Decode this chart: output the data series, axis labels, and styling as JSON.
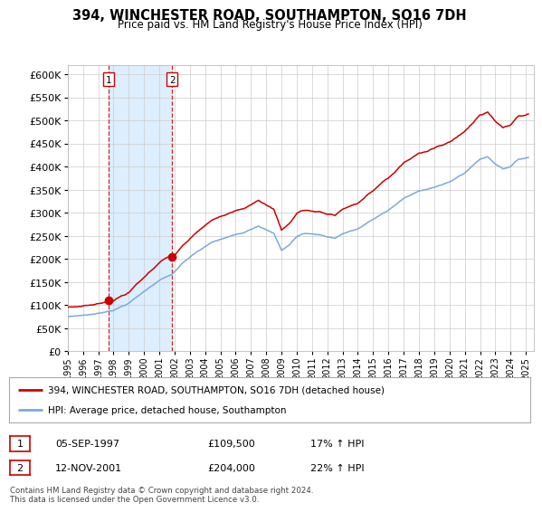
{
  "title": "394, WINCHESTER ROAD, SOUTHAMPTON, SO16 7DH",
  "subtitle": "Price paid vs. HM Land Registry's House Price Index (HPI)",
  "sale1_price": 109500,
  "sale2_price": 204000,
  "hpi_color": "#7aaadd",
  "price_color": "#cc0000",
  "vline_color": "#cc0000",
  "shade_color": "#ddeeff",
  "legend1": "394, WINCHESTER ROAD, SOUTHAMPTON, SO16 7DH (detached house)",
  "legend2": "HPI: Average price, detached house, Southampton",
  "table_row1_label": "1",
  "table_row1_date": "05-SEP-1997",
  "table_row1_price": "£109,500",
  "table_row1_hpi": "17% ↑ HPI",
  "table_row2_label": "2",
  "table_row2_date": "12-NOV-2001",
  "table_row2_price": "£204,000",
  "table_row2_hpi": "22% ↑ HPI",
  "footer": "Contains HM Land Registry data © Crown copyright and database right 2024.\nThis data is licensed under the Open Government Licence v3.0.",
  "ylim": [
    0,
    620000
  ],
  "yticks": [
    0,
    50000,
    100000,
    150000,
    200000,
    250000,
    300000,
    350000,
    400000,
    450000,
    500000,
    550000,
    600000
  ],
  "sale1_t": 1997.667,
  "sale2_t": 2001.833
}
